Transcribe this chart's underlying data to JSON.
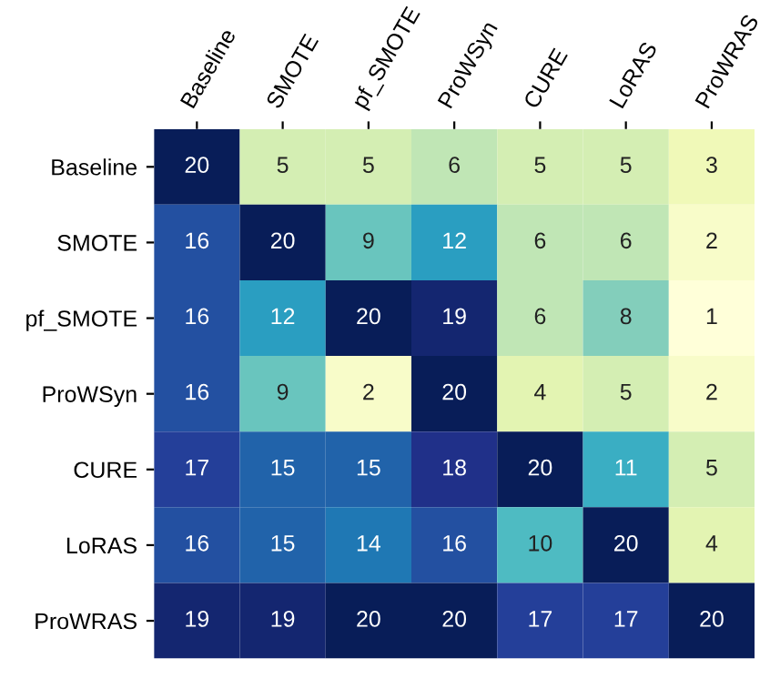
{
  "chart_data": {
    "type": "heatmap",
    "categories": [
      "Baseline",
      "SMOTE",
      "pf_SMOTE",
      "ProWSyn",
      "CURE",
      "LoRAS",
      "ProWRAS"
    ],
    "y_categories": [
      "Baseline",
      "SMOTE",
      "pf_SMOTE",
      "ProWSyn",
      "CURE",
      "LoRAS",
      "ProWRAS"
    ],
    "cells": [
      [
        20,
        5,
        5,
        6,
        5,
        5,
        3
      ],
      [
        16,
        20,
        9,
        12,
        6,
        6,
        2
      ],
      [
        16,
        12,
        20,
        19,
        6,
        8,
        1
      ],
      [
        16,
        9,
        2,
        20,
        4,
        5,
        2
      ],
      [
        17,
        15,
        15,
        18,
        20,
        11,
        5
      ],
      [
        16,
        15,
        14,
        16,
        10,
        20,
        4
      ],
      [
        19,
        19,
        20,
        20,
        17,
        17,
        20
      ]
    ],
    "data_labels": true
  }
}
